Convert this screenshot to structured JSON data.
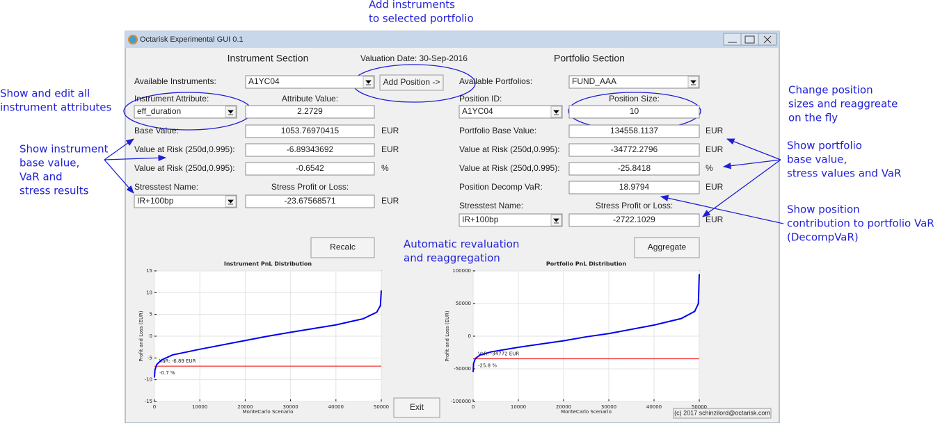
{
  "annotations": {
    "add_instruments": [
      "Add instruments",
      "to selected portfolio"
    ],
    "edit_attributes": [
      "Show and edit all",
      "instrument attributes"
    ],
    "instrument_results": [
      "Show instrument",
      "base value,",
      "VaR and",
      "stress results"
    ],
    "revaluation": [
      "Automatic revaluation",
      "and reaggregation"
    ],
    "position_sizes": [
      "Change position",
      "sizes and reaggreate",
      "on the fly"
    ],
    "portfolio_results": [
      "Show portfolio",
      "base value,",
      "stress values and VaR"
    ],
    "decomp": [
      "Show position",
      "contribution to portfolio VaR",
      "(DecompVaR)"
    ]
  },
  "window": {
    "title": "Octarisk Experimental GUI 0.1",
    "valuation_date": "Valuation Date: 30-Sep-2016",
    "footer": "(c) 2017 schinzilord@octarisk.com",
    "buttons": {
      "add_position": "Add Position ->",
      "recalc": "Recalc",
      "aggregate": "Aggregate",
      "exit": "Exit"
    }
  },
  "instrument": {
    "header": "Instrument Section",
    "select_label": "Available Instruments:",
    "select_value": "A1YC04",
    "pick_label": "Instrument Attribute:",
    "pick_value_label": "Attribute Value:",
    "pick": "eff_duration",
    "pick_value": "2.2729",
    "rows": [
      [
        "Base Value:",
        "1053.76970415",
        "EUR"
      ],
      [
        "Value at Risk (250d,0.995):",
        "-6.89343692",
        "EUR"
      ],
      [
        "Value at Risk (250d,0.995):",
        "-0.6542",
        "%"
      ]
    ],
    "stress_label": "Stresstest Name:",
    "stress_pl_label": "Stress Profit or Loss:",
    "stress": "IR+100bp",
    "stress_pl": "-23.67568571",
    "stress_unit": "EUR"
  },
  "portfolio": {
    "header": "Portfolio Section",
    "select_label": "Available Portfolios:",
    "select_value": "FUND_AAA",
    "pick_label": "Position ID:",
    "pick_value_label": "Position Size:",
    "pick": "A1YC04",
    "pick_value": "10",
    "rows": [
      [
        "Portfolio Base Value:",
        "134558.1137",
        "EUR"
      ],
      [
        "Value at Risk (250d,0.995):",
        "-34772.2796",
        "EUR"
      ],
      [
        "Value at Risk (250d,0.995):",
        "-25.8418",
        "%"
      ],
      [
        "Position Decomp VaR:",
        "18.9794",
        "EUR"
      ]
    ],
    "stress_label": "Stresstest Name:",
    "stress_pl_label": "Stress Profit or Loss:",
    "stress": "IR+100bp",
    "stress_pl": "-2722.1029",
    "stress_unit": "EUR"
  },
  "charts": [
    {
      "type": "line",
      "title": "Instrument PnL Distribution",
      "xlabel": "MonteCarlo Scenario",
      "ylabel": "Profit and Loss (EUR)",
      "xlim": [
        0,
        50000
      ],
      "xticks": [
        0,
        10000,
        20000,
        30000,
        40000,
        50000
      ],
      "ylim": [
        -15,
        15
      ],
      "yticks": [
        -15,
        -10,
        -5,
        0,
        5,
        10,
        15
      ],
      "grid": true,
      "color": "#0000ee",
      "x": [
        0,
        100,
        500,
        1500,
        4000,
        10000,
        20000,
        25000,
        30000,
        40000,
        46000,
        49000,
        49800,
        50000
      ],
      "y": [
        -9.5,
        -7.8,
        -6.5,
        -5.5,
        -4.3,
        -3,
        -1,
        0,
        0.9,
        2.6,
        4,
        5.5,
        7,
        10.5
      ],
      "var_level": -6.89,
      "var_color": "#ee0000",
      "var_label": "VaR: -6.89 EUR",
      "var_pct_label": "-0.7 %"
    },
    {
      "type": "line",
      "title": "Portfolio PnL Distribution",
      "xlabel": "MonteCarlo Scenario",
      "ylabel": "Profit and Loss (EUR)",
      "xlim": [
        0,
        50000
      ],
      "xticks": [
        0,
        10000,
        20000,
        30000,
        40000,
        50000
      ],
      "ylim": [
        -100000,
        100000
      ],
      "yticks": [
        -100000,
        -50000,
        0,
        50000,
        100000
      ],
      "grid": true,
      "color": "#0000ee",
      "x": [
        0,
        100,
        500,
        1500,
        4000,
        10000,
        20000,
        25000,
        30000,
        40000,
        46000,
        49000,
        49800,
        50000
      ],
      "y": [
        -55000,
        -42000,
        -34000,
        -29000,
        -24000,
        -17000,
        -7000,
        -1000,
        4000,
        17000,
        27000,
        38000,
        50000,
        95000
      ],
      "var_level": -34772,
      "var_color": "#ee0000",
      "var_label": "VaR: -34772 EUR",
      "var_pct_label": "-25.8 %"
    }
  ]
}
